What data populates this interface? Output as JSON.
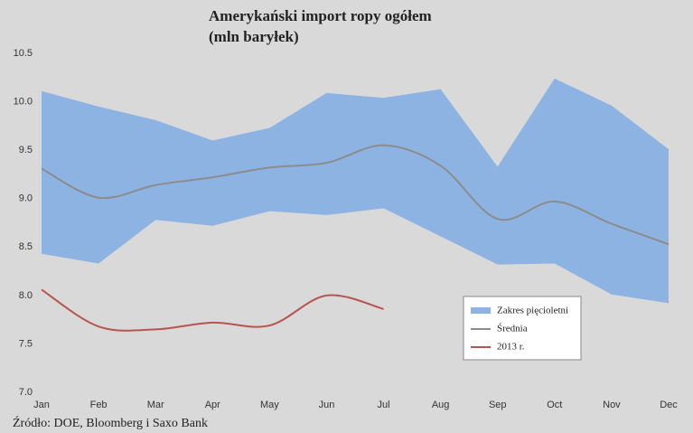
{
  "chart_data": {
    "type": "line",
    "title": "Amerykański import ropy ogółem",
    "subtitle": "(mln baryłek)",
    "source": "Źródło: DOE, Bloomberg i Saxo Bank",
    "categories": [
      "Jan",
      "Feb",
      "Mar",
      "Apr",
      "May",
      "Jun",
      "Jul",
      "Aug",
      "Sep",
      "Oct",
      "Nov",
      "Dec"
    ],
    "series": [
      {
        "name": "Zakres pięcioletni",
        "color": "#8db3e2",
        "high": [
          10.11,
          9.95,
          9.81,
          9.6,
          9.73,
          10.09,
          10.04,
          10.13,
          9.33,
          10.24,
          9.96,
          9.51
        ],
        "low": [
          8.43,
          8.33,
          8.78,
          8.72,
          8.87,
          8.83,
          8.9,
          8.61,
          8.32,
          8.33,
          8.01,
          7.92
        ]
      },
      {
        "name": "Średnia",
        "color": "#8c8c8c",
        "values": [
          9.31,
          9.01,
          9.14,
          9.22,
          9.32,
          9.37,
          9.55,
          9.34,
          8.79,
          8.97,
          8.74,
          8.53
        ]
      },
      {
        "name": "2013 r.",
        "color": "#b85450",
        "values": [
          8.06,
          7.68,
          7.65,
          7.72,
          7.69,
          8.0,
          7.86,
          null,
          null,
          null,
          null,
          null
        ]
      }
    ],
    "ylim": [
      7.0,
      10.5
    ],
    "yticks": [
      {
        "value": 7,
        "label": "7.0"
      },
      7.5,
      {
        "value": 8,
        "label": "8.0"
      },
      8.5,
      {
        "value": 9,
        "label": "9.0"
      },
      9.5,
      {
        "value": 10,
        "label": "10.0"
      },
      10.5
    ]
  }
}
